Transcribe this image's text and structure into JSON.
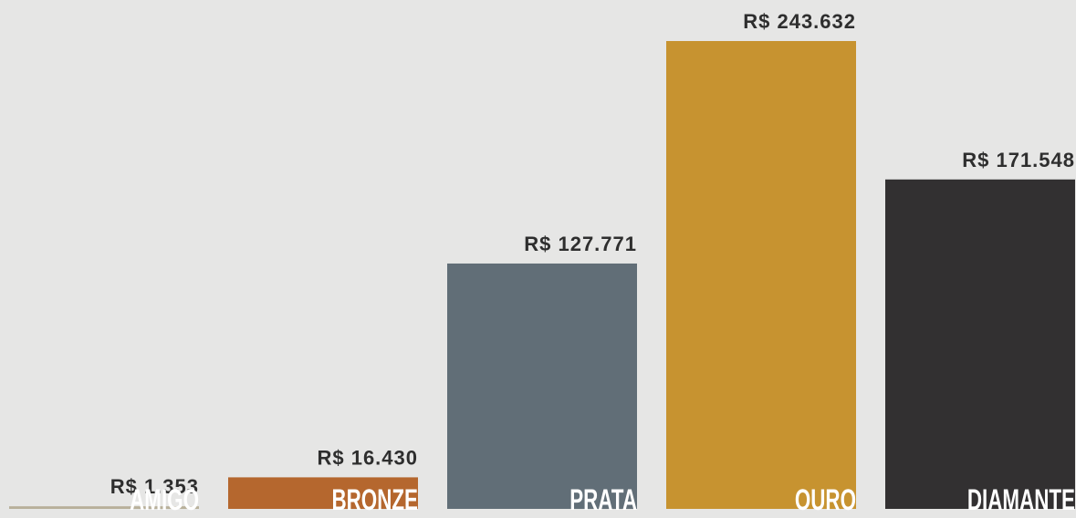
{
  "chart_data": {
    "type": "bar",
    "categories": [
      "AMIGO",
      "BRONZE",
      "PRATA",
      "OURO",
      "DIAMANTE"
    ],
    "values": [
      1353,
      16430,
      127771,
      243632,
      171548
    ],
    "value_labels": [
      "R$ 1.353",
      "R$ 16.430",
      "R$ 127.771",
      "R$ 243.632",
      "R$ 171.548"
    ],
    "colors": [
      "#b8b09a",
      "#b5672e",
      "#616e77",
      "#c79330",
      "#323031"
    ]
  }
}
